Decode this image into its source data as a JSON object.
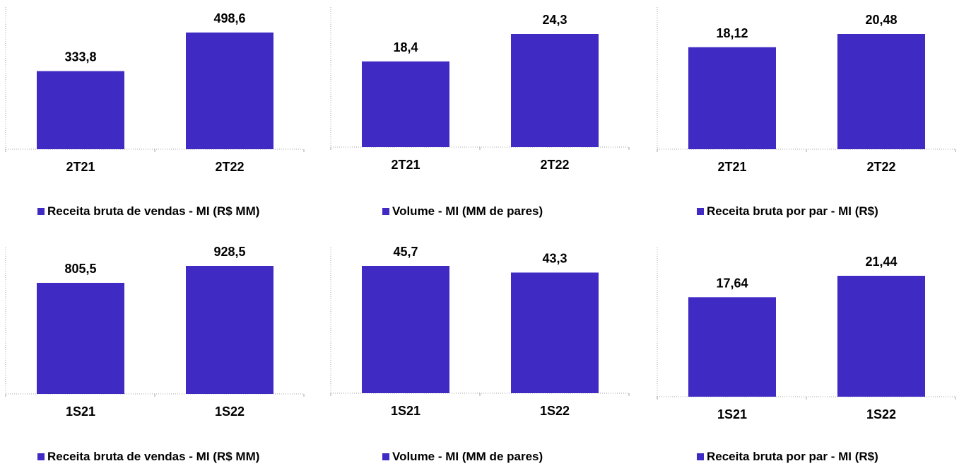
{
  "colors": {
    "bar": "#3f2bc3",
    "axis": "#a6a6a6",
    "text": "#000000"
  },
  "chart_data": [
    {
      "type": "bar",
      "categories": [
        "2T21",
        "2T22"
      ],
      "values": [
        333.8,
        498.6
      ],
      "value_labels": [
        "333,8",
        "498,6"
      ],
      "series": [
        {
          "name": "Receita bruta de vendas - MI (R$ MM)",
          "values": [
            333.8,
            498.6
          ]
        }
      ],
      "legend": "Receita bruta de vendas - MI (R$ MM)",
      "legend_position": "bottom",
      "grid": false
    },
    {
      "type": "bar",
      "categories": [
        "2T21",
        "2T22"
      ],
      "values": [
        18.4,
        24.3
      ],
      "value_labels": [
        "18,4",
        "24,3"
      ],
      "series": [
        {
          "name": "Volume - MI (MM de pares)",
          "values": [
            18.4,
            24.3
          ]
        }
      ],
      "legend": "Volume - MI (MM de pares)",
      "legend_position": "bottom",
      "grid": false
    },
    {
      "type": "bar",
      "categories": [
        "2T21",
        "2T22"
      ],
      "values": [
        18.12,
        20.48
      ],
      "value_labels": [
        "18,12",
        "20,48"
      ],
      "series": [
        {
          "name": "Receita bruta por par - MI (R$)",
          "values": [
            18.12,
            20.48
          ]
        }
      ],
      "legend": "Receita bruta por par - MI (R$)",
      "legend_position": "bottom",
      "grid": false
    },
    {
      "type": "bar",
      "categories": [
        "1S21",
        "1S22"
      ],
      "values": [
        805.5,
        928.5
      ],
      "value_labels": [
        "805,5",
        "928,5"
      ],
      "series": [
        {
          "name": "Receita bruta de vendas - MI (R$ MM)",
          "values": [
            805.5,
            928.5
          ]
        }
      ],
      "legend": "Receita bruta de vendas - MI (R$ MM)",
      "legend_position": "bottom",
      "grid": false
    },
    {
      "type": "bar",
      "categories": [
        "1S21",
        "1S22"
      ],
      "values": [
        45.7,
        43.3
      ],
      "value_labels": [
        "45,7",
        "43,3"
      ],
      "series": [
        {
          "name": "Volume - MI (MM de pares)",
          "values": [
            45.7,
            43.3
          ]
        }
      ],
      "legend": "Volume - MI (MM de pares)",
      "legend_position": "bottom",
      "grid": false
    },
    {
      "type": "bar",
      "categories": [
        "1S21",
        "1S22"
      ],
      "values": [
        17.64,
        21.44
      ],
      "value_labels": [
        "17,64",
        "21,44"
      ],
      "series": [
        {
          "name": "Receita bruta por par - MI (R$)",
          "values": [
            17.64,
            21.44
          ]
        }
      ],
      "legend": "Receita bruta por par - MI (R$)",
      "legend_position": "bottom",
      "grid": false
    }
  ]
}
